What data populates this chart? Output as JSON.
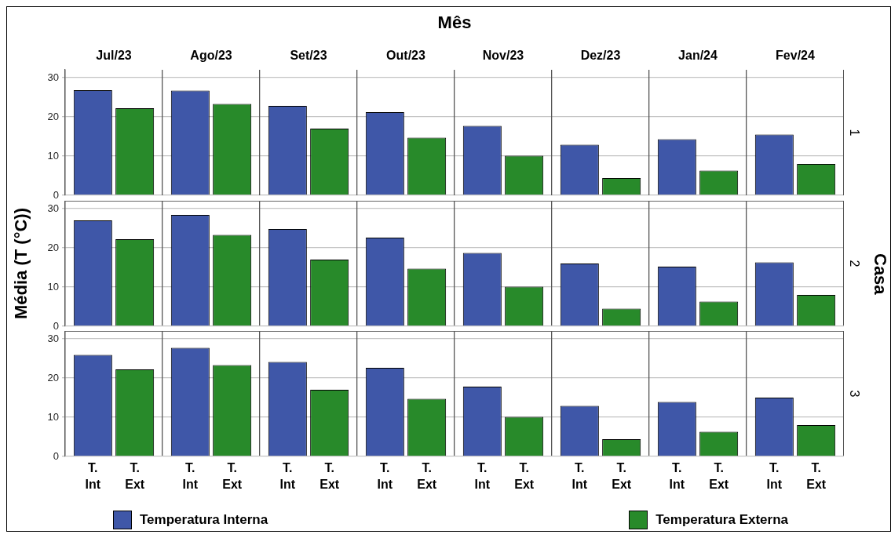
{
  "chart_data": [
    {
      "type": "bar",
      "xlabel": "Mês",
      "annotations": [
        "1"
      ],
      "categories": [
        "Jul/23",
        "Ago/23",
        "Set/23",
        "Out/23",
        "Nov/23",
        "Dez/23",
        "Jan/24",
        "Fev/24"
      ],
      "series": [
        {
          "color": "#3f57a8",
          "values": [
            26.8,
            26.7,
            22.8,
            21.2,
            17.7,
            12.9,
            14.3,
            15.5
          ]
        },
        {
          "color": "#288a2a",
          "values": [
            22.2,
            23.3,
            17.0,
            14.7,
            10.1,
            4.4,
            6.3,
            8.0
          ]
        }
      ],
      "ylim": [
        0,
        32
      ],
      "yticks": [
        0,
        10,
        20,
        30
      ],
      "grid": "y"
    },
    {
      "type": "bar",
      "ylabel": "Média (T (°C))",
      "annotations": [
        "2",
        "Casa"
      ],
      "categories": [
        null,
        null,
        null,
        null,
        null,
        null,
        null,
        null
      ],
      "series": [
        {
          "color": "#3f57a8",
          "values": [
            27.0,
            28.4,
            24.8,
            22.6,
            18.7,
            16.0,
            15.2,
            16.3
          ]
        },
        {
          "color": "#288a2a",
          "values": [
            22.2,
            23.3,
            17.0,
            14.7,
            10.1,
            4.5,
            6.3,
            8.0
          ]
        }
      ],
      "ylim": [
        0,
        32
      ],
      "yticks": [
        0,
        10,
        20,
        30
      ],
      "grid": "y",
      "tick_labels": "y"
    },
    {
      "type": "bar",
      "legend": "bottom",
      "annotations": [
        "3",
        "T. Int",
        "T. Ext",
        "T. Int",
        "T. Ext",
        "T. Int",
        "T. Ext",
        "T. Int",
        "T. Ext",
        "T. Int",
        "T. Ext",
        "T. Int",
        "T. Ext",
        "T. Int",
        "T. Ext",
        "T. Int",
        "T. Ext"
      ],
      "categories": [
        null,
        null,
        null,
        null,
        null,
        null,
        null,
        null
      ],
      "series": [
        {
          "name": "Temperatura Interna",
          "color": "#3f57a8",
          "values": [
            25.9,
            27.7,
            24.1,
            22.6,
            17.8,
            12.9,
            13.9,
            15.0
          ]
        },
        {
          "name": "Temperatura Externa",
          "color": "#288a2a",
          "values": [
            22.2,
            23.3,
            17.0,
            14.7,
            10.1,
            4.4,
            6.3,
            8.0
          ]
        }
      ],
      "ylim": [
        0,
        32
      ],
      "yticks": [
        0,
        10,
        20,
        30
      ],
      "grid": "y",
      "tick_labels": "y"
    }
  ]
}
